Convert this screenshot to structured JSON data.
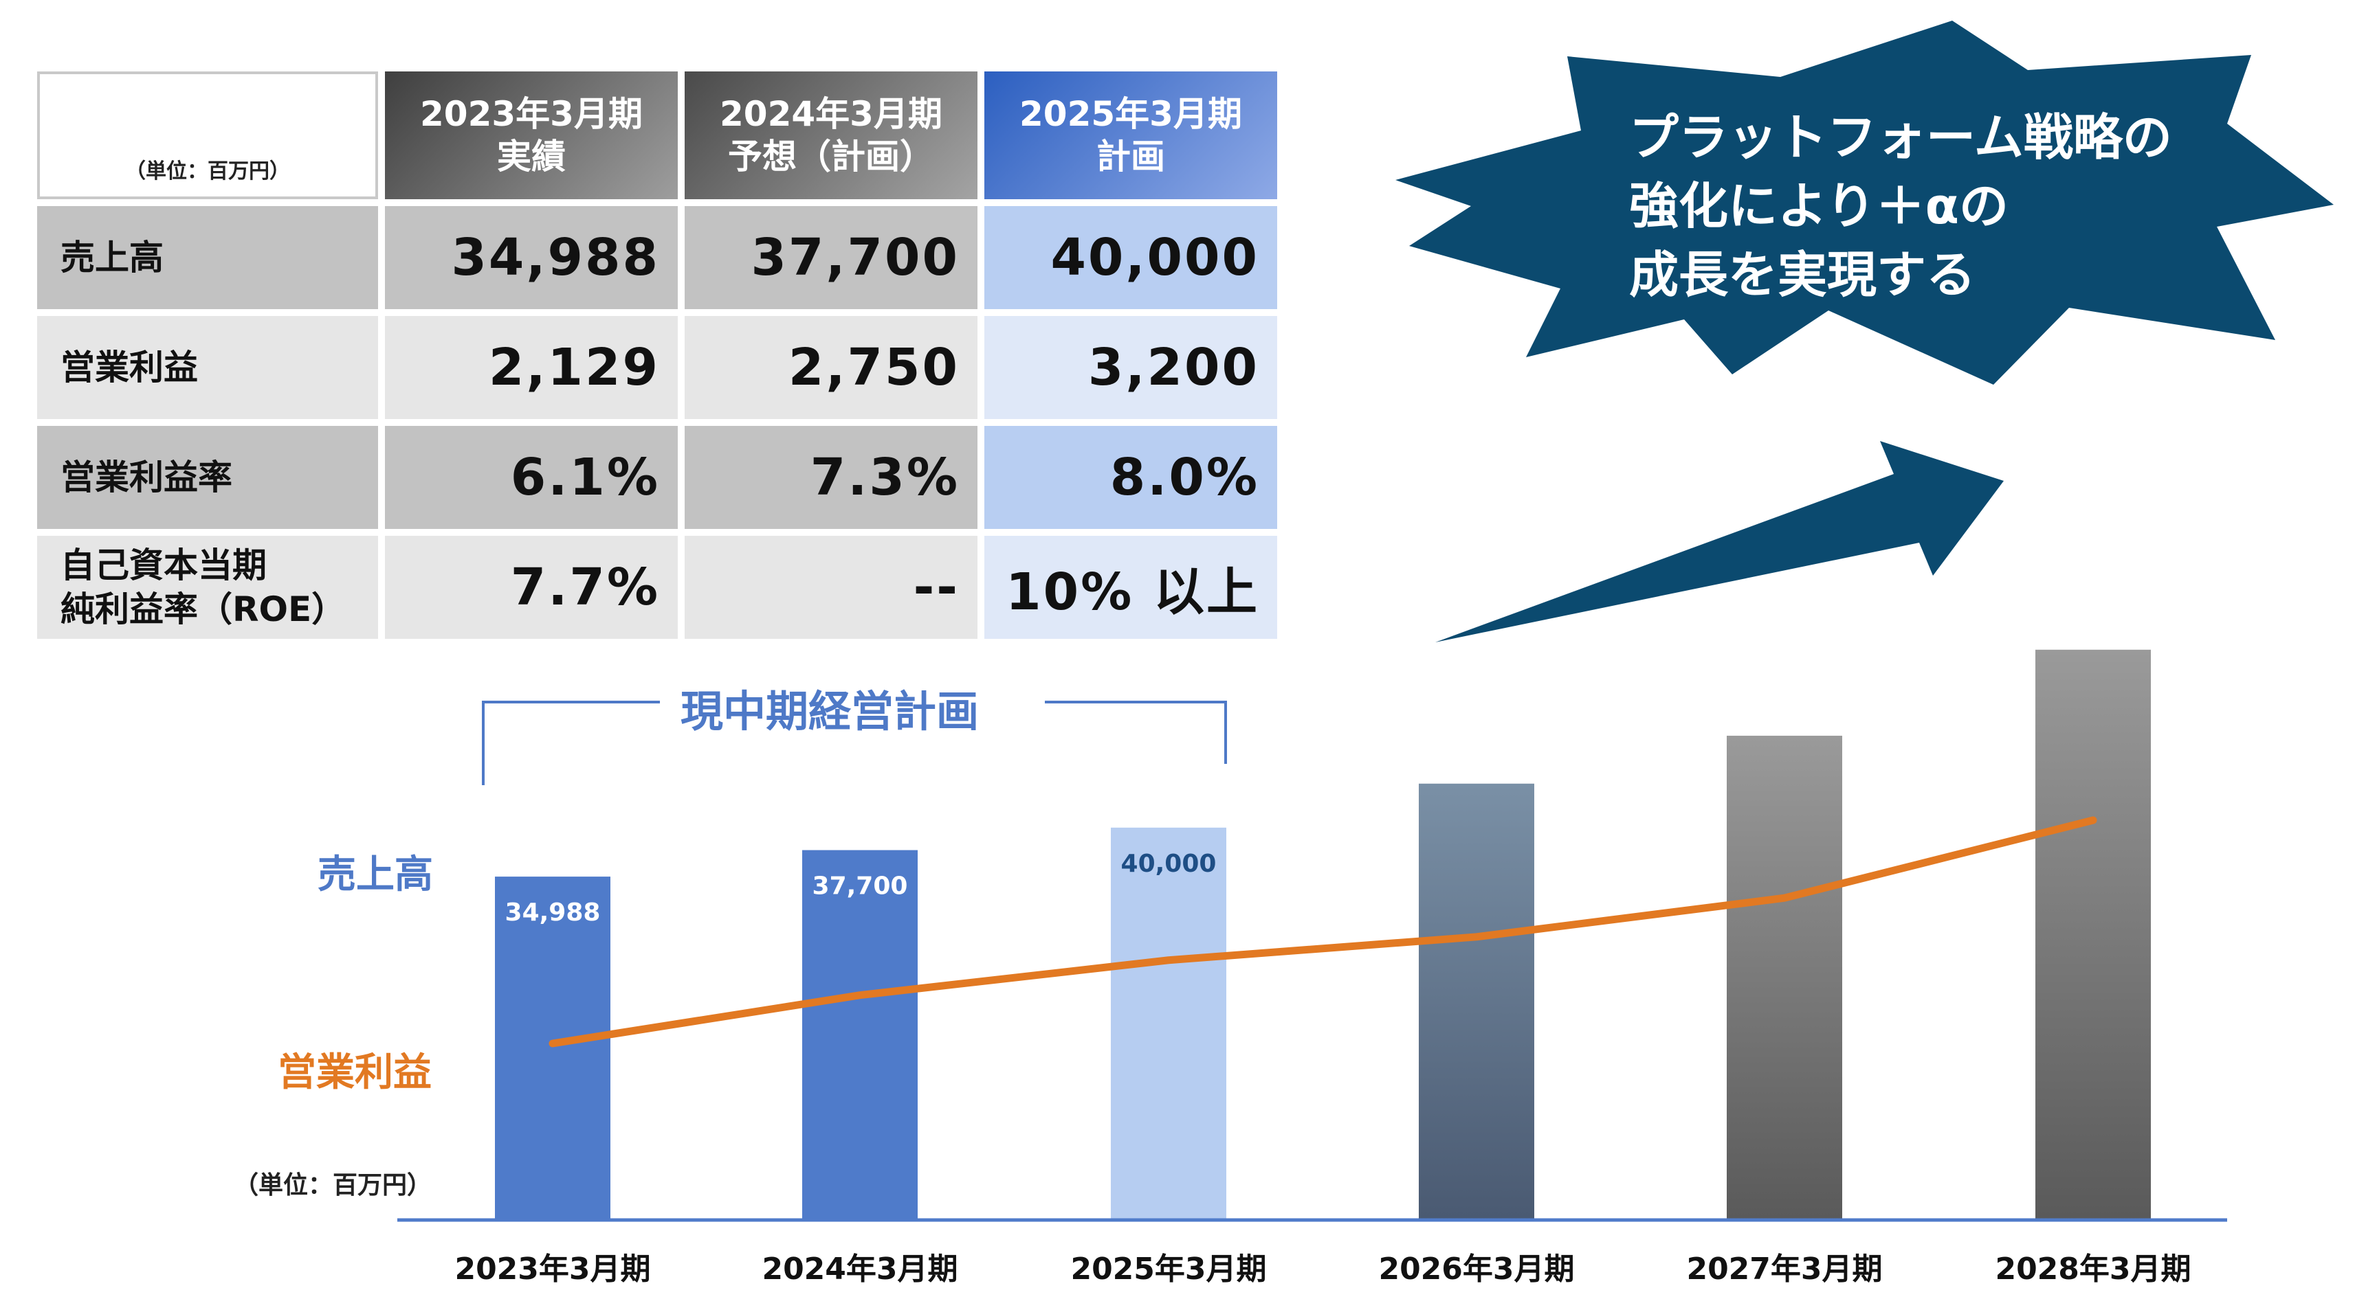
{
  "table": {
    "unit": "（単位：百万円）",
    "columns": [
      {
        "line1": "2023年3月期",
        "line2": "実績"
      },
      {
        "line1": "2024年3月期",
        "line2": "予想（計画）"
      },
      {
        "line1": "2025年3月期",
        "line2": "計画"
      }
    ],
    "rows": [
      {
        "label_lines": [
          "売上高"
        ],
        "values": [
          "34,988",
          "37,700",
          "40,000"
        ]
      },
      {
        "label_lines": [
          "営業利益"
        ],
        "values": [
          "2,129",
          "2,750",
          "3,200"
        ]
      },
      {
        "label_lines": [
          "営業利益率"
        ],
        "values": [
          "6.1%",
          "7.3%",
          "8.0%"
        ]
      },
      {
        "label_lines": [
          "自己資本当期",
          "純利益率（ROE）"
        ],
        "values": [
          "7.7%",
          "--",
          "10% 以上"
        ]
      }
    ]
  },
  "callout": {
    "lines": [
      "プラットフォーム戦略の",
      "強化により＋αの",
      "成長を実現する"
    ],
    "color": "#0b4a6f"
  },
  "chart_data": {
    "type": "bar",
    "categories": [
      "2023年3月期",
      "2024年3月期",
      "2025年3月期",
      "2026年3月期",
      "2027年3月期",
      "2028年3月期"
    ],
    "series": [
      {
        "name": "売上高",
        "type": "bar",
        "values": [
          34988,
          37700,
          40000,
          44500,
          49400,
          58200
        ],
        "labels": [
          "34,988",
          "37,700",
          "40,000",
          "",
          "",
          ""
        ]
      },
      {
        "name": "営業利益",
        "type": "line",
        "values": [
          2129,
          2750,
          3200,
          3500,
          4000,
          5000
        ]
      }
    ],
    "bracket_label": "現中期経営計画",
    "unit": "（単位：百万円）",
    "colors": {
      "bar_actual": "#4f7bca",
      "bar_plan": "#b6cdf1",
      "bar_future_blue_top": "#7a90a6",
      "bar_future_blue_bottom": "#4a5a72",
      "bar_future_gray_top": "#9a9a9a",
      "bar_future_gray_bottom": "#5a5a5a",
      "line": "#e27922",
      "axis": "#4f7bca"
    }
  }
}
